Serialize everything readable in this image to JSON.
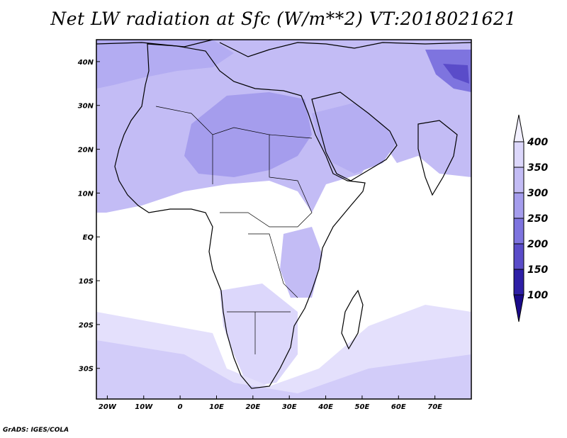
{
  "title": "Net LW radiation at Sfc (W/m**2) VT:2018021621",
  "footer": "GrADS: IGES/COLA",
  "map": {
    "lon_range": [
      -23,
      80
    ],
    "lat_range": [
      -37,
      45
    ],
    "x_ticks": [
      "20W",
      "10W",
      "0",
      "10E",
      "20E",
      "30E",
      "40E",
      "50E",
      "60E",
      "70E"
    ],
    "y_ticks": [
      "40N",
      "30N",
      "20N",
      "10N",
      "EQ",
      "10S",
      "20S",
      "30S"
    ]
  },
  "colorbar": {
    "labels": [
      "400",
      "350",
      "300",
      "250",
      "200",
      "150",
      "100"
    ],
    "colors": [
      "#f2f0ff",
      "#dcd7fb",
      "#c3bcf5",
      "#a59ded",
      "#7e74df",
      "#5a4cc9",
      "#2e1fa6"
    ]
  }
}
